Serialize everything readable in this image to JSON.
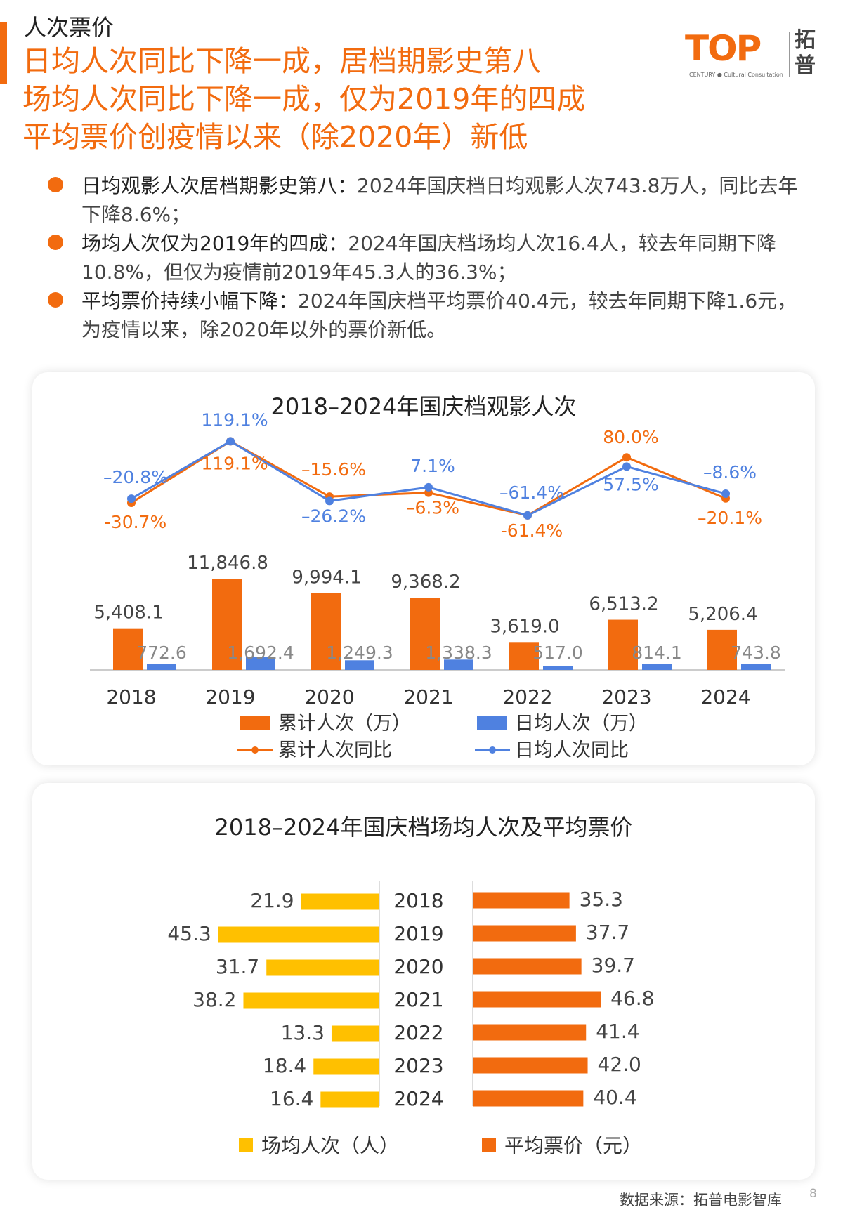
{
  "header": {
    "section": "人次票价",
    "headline": [
      "日均人次同比下降一成，居档期影史第八",
      "场均人次同比下降一成，仅为2019年的四成",
      "平均票价创疫情以来（除2020年）新低"
    ],
    "logo_top": "TOP",
    "logo_sub": "CENTURY ● Cultural Consultation",
    "logo_cn": "拓普"
  },
  "bullets": [
    {
      "lead": "日均观影人次居档期影史第八：",
      "text": "2024年国庆档日均观影人次743.8万人，同比去年下降8.6%；"
    },
    {
      "lead": "场均人次仅为2019年的四成：",
      "text": "2024年国庆档场均人次16.4人，较去年同期下降10.8%，但仅为疫情前2019年45.3人的36.3%；"
    },
    {
      "lead": "平均票价持续小幅下降：",
      "text": "2024年国庆档平均票价40.4元，较去年同期下降1.6元，为疫情以来，除2020年以外的票价新低。"
    }
  ],
  "chart_data": [
    {
      "type": "bar",
      "title": "2018–2024年国庆档观影人次",
      "categories": [
        "2018",
        "2019",
        "2020",
        "2021",
        "2022",
        "2023",
        "2024"
      ],
      "series": [
        {
          "name": "累计人次（万）",
          "kind": "bar",
          "color": "#f26b0f",
          "values": [
            5408.1,
            11846.8,
            9994.1,
            9368.2,
            3619.0,
            6513.2,
            5206.4
          ],
          "labels": [
            "5,408.1",
            "11,846.8",
            "9,994.1",
            "9,368.2",
            "3,619.0",
            "6,513.2",
            "5,206.4"
          ]
        },
        {
          "name": "日均人次（万）",
          "kind": "bar",
          "color": "#4f81e0",
          "values": [
            772.6,
            1692.4,
            1249.3,
            1338.3,
            517.0,
            814.1,
            743.8
          ],
          "labels": [
            "772.6",
            "1,692.4",
            "1,249.3",
            "1,338.3",
            "517.0",
            "814.1",
            "743.8"
          ]
        },
        {
          "name": "累计人次同比",
          "kind": "line",
          "color": "#f26b0f",
          "values": [
            -30.7,
            119.1,
            -15.6,
            -6.3,
            -61.4,
            80.0,
            -20.1
          ],
          "labels": [
            "-30.7%",
            "119.1%",
            "–15.6%",
            "–6.3%",
            "-61.4%",
            "80.0%",
            "–20.1%"
          ]
        },
        {
          "name": "日均人次同比",
          "kind": "line",
          "color": "#4f81e0",
          "values": [
            -20.8,
            119.1,
            -26.2,
            7.1,
            -61.4,
            57.5,
            -8.6
          ],
          "labels": [
            "–20.8%",
            "119.1%",
            "–26.2%",
            "7.1%",
            "–61.4%",
            "57.5%",
            "–8.6%"
          ]
        }
      ],
      "legend": "bottom"
    },
    {
      "type": "bar",
      "orientation": "horizontal-butterfly",
      "title": "2018–2024年国庆档场均人次及平均票价",
      "categories": [
        "2018",
        "2019",
        "2020",
        "2021",
        "2022",
        "2023",
        "2024"
      ],
      "series": [
        {
          "name": "场均人次（人）",
          "color": "#ffc000",
          "values": [
            21.9,
            45.3,
            31.7,
            38.2,
            13.3,
            18.4,
            16.4
          ],
          "labels": [
            "21.9",
            "45.3",
            "31.7",
            "38.2",
            "13.3",
            "18.4",
            "16.4"
          ]
        },
        {
          "name": "平均票价（元）",
          "color": "#f26b0f",
          "values": [
            35.3,
            37.7,
            39.7,
            46.8,
            41.4,
            42.0,
            40.4
          ],
          "labels": [
            "35.3",
            "37.7",
            "39.7",
            "46.8",
            "41.4",
            "42.0",
            "40.4"
          ]
        }
      ],
      "legend": "bottom"
    }
  ],
  "footer": {
    "source": "数据来源：拓普电影智库",
    "page": "8"
  }
}
